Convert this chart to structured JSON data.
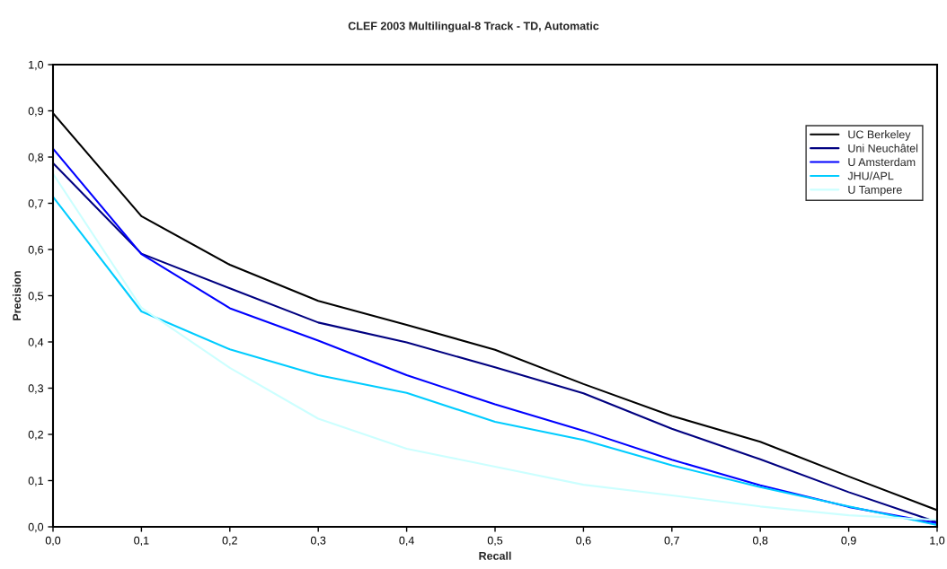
{
  "chart_data": {
    "type": "line",
    "title": "CLEF 2003 Multilingual-8 Track - TD, Automatic",
    "xlabel": "Recall",
    "ylabel": "Precision",
    "x": [
      0,
      0.1,
      0.2,
      0.3,
      0.4,
      0.5,
      0.6,
      0.7,
      0.8,
      0.9,
      1.0
    ],
    "series": [
      {
        "name": "UC Berkeley",
        "color": "#000000",
        "values": [
          0.895,
          0.672,
          0.567,
          0.489,
          0.437,
          0.383,
          0.309,
          0.24,
          0.184,
          0.109,
          0.036
        ]
      },
      {
        "name": "Uni Neuchâtel",
        "color": "#000080",
        "values": [
          0.787,
          0.591,
          0.516,
          0.442,
          0.399,
          0.345,
          0.289,
          0.212,
          0.146,
          0.075,
          0.01
        ]
      },
      {
        "name": "U Amsterdam",
        "color": "#0000ff",
        "values": [
          0.818,
          0.59,
          0.473,
          0.403,
          0.328,
          0.265,
          0.208,
          0.145,
          0.09,
          0.043,
          0.008
        ]
      },
      {
        "name": "JHU/APL",
        "color": "#00ccff",
        "values": [
          0.714,
          0.466,
          0.384,
          0.328,
          0.29,
          0.227,
          0.188,
          0.133,
          0.086,
          0.044,
          0.004
        ]
      },
      {
        "name": "U Tampere",
        "color": "#ccffff",
        "values": [
          0.764,
          0.474,
          0.344,
          0.234,
          0.169,
          0.13,
          0.091,
          0.068,
          0.044,
          0.025,
          0.015
        ]
      }
    ],
    "xlim": [
      0,
      1.0
    ],
    "ylim": [
      0,
      1.0
    ],
    "xticks": [
      {
        "value": 0,
        "label": "0,0"
      },
      {
        "value": 0.1,
        "label": "0,1"
      },
      {
        "value": 0.2,
        "label": "0,2"
      },
      {
        "value": 0.3,
        "label": "0,3"
      },
      {
        "value": 0.4,
        "label": "0,4"
      },
      {
        "value": 0.5,
        "label": "0,5"
      },
      {
        "value": 0.6,
        "label": "0,6"
      },
      {
        "value": 0.7,
        "label": "0,7"
      },
      {
        "value": 0.8,
        "label": "0,8"
      },
      {
        "value": 0.9,
        "label": "0,9"
      },
      {
        "value": 1.0,
        "label": "1,0"
      }
    ],
    "yticks": [
      {
        "value": 0,
        "label": "0,0"
      },
      {
        "value": 0.1,
        "label": "0,1"
      },
      {
        "value": 0.2,
        "label": "0,2"
      },
      {
        "value": 0.3,
        "label": "0,3"
      },
      {
        "value": 0.4,
        "label": "0,4"
      },
      {
        "value": 0.5,
        "label": "0,5"
      },
      {
        "value": 0.6,
        "label": "0,6"
      },
      {
        "value": 0.7,
        "label": "0,7"
      },
      {
        "value": 0.8,
        "label": "0,8"
      },
      {
        "value": 0.9,
        "label": "0,9"
      },
      {
        "value": 1.0,
        "label": "1,0"
      }
    ],
    "grid": false,
    "legend": "top right",
    "marker": "none",
    "line_style": "solid"
  }
}
